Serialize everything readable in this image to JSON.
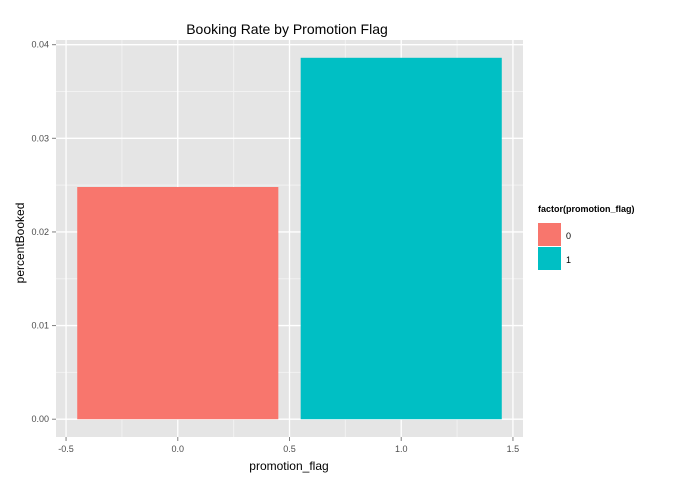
{
  "chart_data": {
    "type": "bar",
    "title": "Booking Rate by Promotion Flag",
    "xlabel": "promotion_flag",
    "ylabel": "percentBooked",
    "xlim": [
      -0.545,
      1.545
    ],
    "ylim": [
      -0.0019,
      0.0405
    ],
    "xticks": [
      -0.5,
      0.0,
      0.5,
      1.0,
      1.5
    ],
    "xtick_labels": [
      "-0.5",
      "0.0",
      "0.5",
      "1.0",
      "1.5"
    ],
    "yticks": [
      0.0,
      0.01,
      0.02,
      0.03,
      0.04
    ],
    "ytick_labels": [
      "0.00",
      "0.01",
      "0.02",
      "0.03",
      "0.04"
    ],
    "bar_width": 0.9,
    "grid": true,
    "legend": {
      "title": "factor(promotion_flag)",
      "placement": "right",
      "entries": [
        {
          "label": "0",
          "color": "#F8766D"
        },
        {
          "label": "1",
          "color": "#00BFC4"
        }
      ]
    },
    "bars": [
      {
        "x": 0,
        "value": 0.0248,
        "color": "#F8766D"
      },
      {
        "x": 1,
        "value": 0.0386,
        "color": "#00BFC4"
      }
    ],
    "colors": {
      "panel_background": "#E5E5E5",
      "grid_major": "#FFFFFF",
      "grid_minor": "#F2F2F2"
    }
  }
}
